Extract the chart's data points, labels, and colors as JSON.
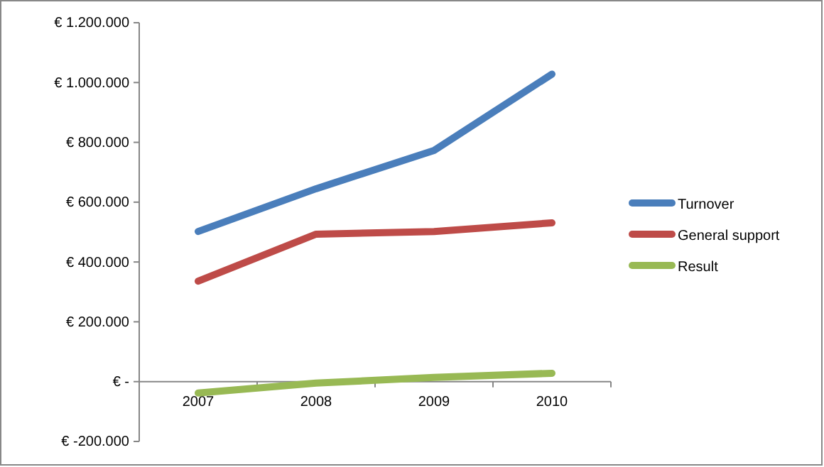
{
  "chart_data": {
    "type": "line",
    "categories": [
      "2007",
      "2008",
      "2009",
      "2010"
    ],
    "series": [
      {
        "name": "Turnover",
        "color": "#4a7ebb",
        "values": [
          502000,
          645000,
          773000,
          1028000
        ]
      },
      {
        "name": "General support",
        "color": "#be4b48",
        "values": [
          336000,
          493000,
          502000,
          531000
        ]
      },
      {
        "name": "Result",
        "color": "#98b954",
        "values": [
          -38000,
          -5000,
          14000,
          28000
        ]
      }
    ],
    "ylim": [
      -200000,
      1200000
    ],
    "yticks": [
      {
        "value": -200000,
        "label": "€ -200.000"
      },
      {
        "value": 0,
        "label": "€ -"
      },
      {
        "value": 200000,
        "label": "€ 200.000"
      },
      {
        "value": 400000,
        "label": "€ 400.000"
      },
      {
        "value": 600000,
        "label": "€ 600.000"
      },
      {
        "value": 800000,
        "label": "€ 800.000"
      },
      {
        "value": 1000000,
        "label": "€ 1.000.000"
      },
      {
        "value": 1200000,
        "label": "€ 1.200.000"
      }
    ],
    "grid": false,
    "legend": "right",
    "marker": "none",
    "line_style": "solid"
  }
}
